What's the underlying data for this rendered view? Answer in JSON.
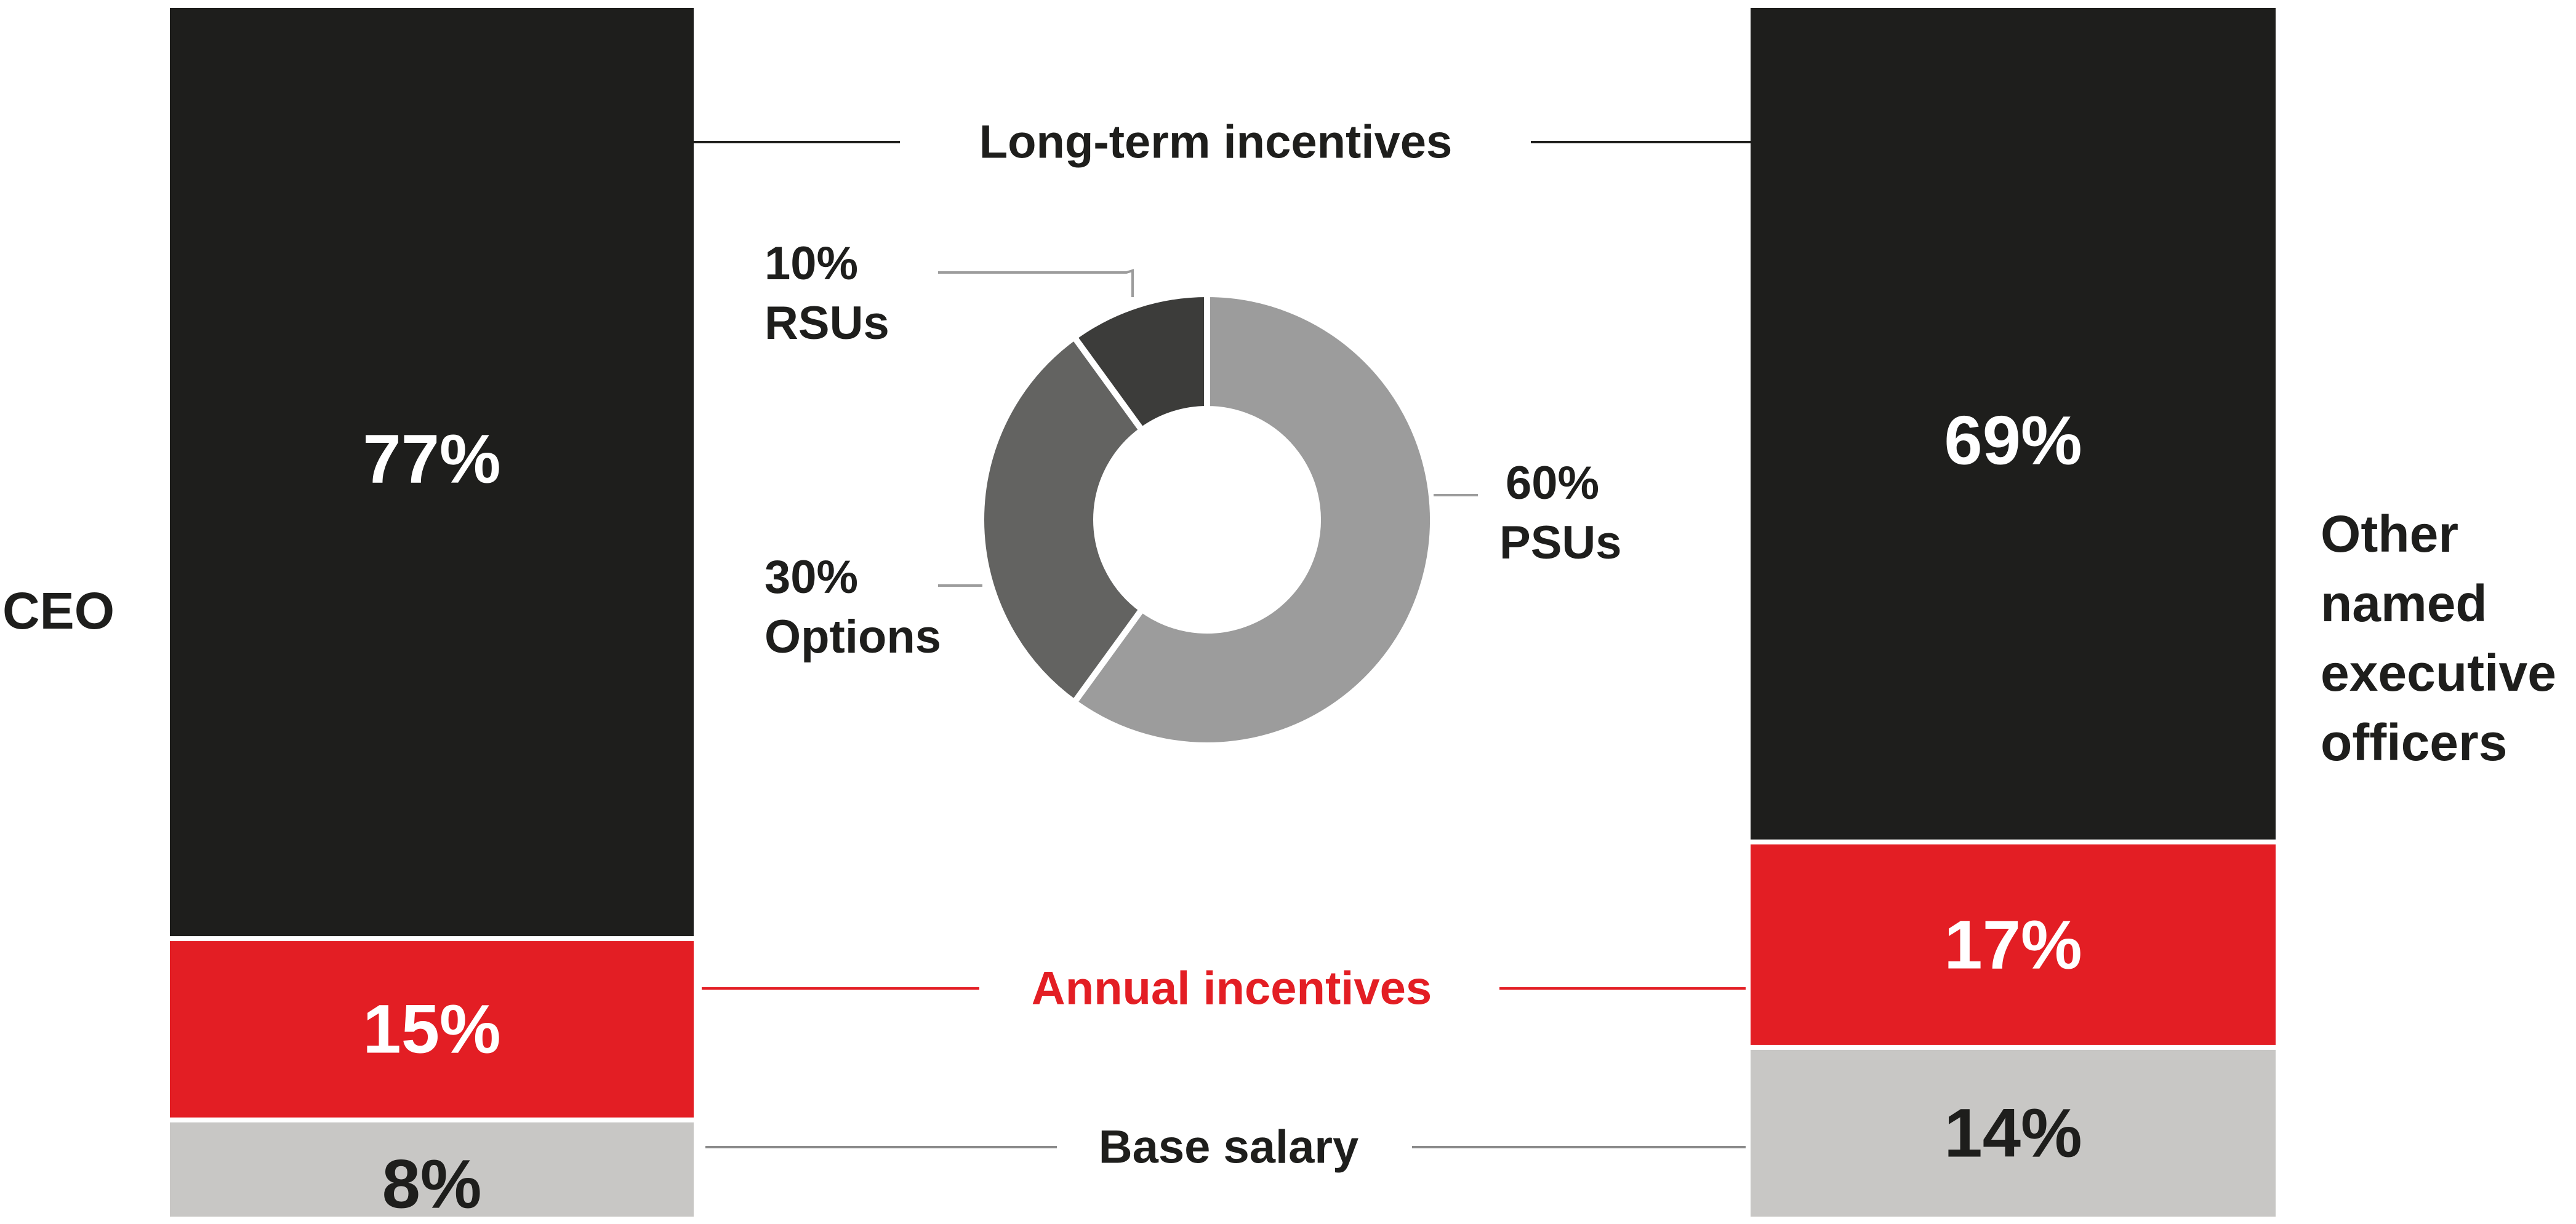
{
  "chart_data": [
    {
      "type": "bar",
      "stacked": true,
      "unit": "%",
      "categories": [
        "CEO",
        "Other named executive officers"
      ],
      "series": [
        {
          "name": "Base salary",
          "values": [
            8,
            14
          ],
          "color": "#c8c7c5"
        },
        {
          "name": "Annual incentives",
          "values": [
            15,
            17
          ],
          "color": "#e31e24"
        },
        {
          "name": "Long-term incentives",
          "values": [
            77,
            69
          ],
          "color": "#1e1e1c"
        }
      ],
      "data_labels": {
        "CEO": [
          "8%",
          "15%",
          "77%"
        ],
        "Other named executive officers": [
          "14%",
          "17%",
          "69%"
        ]
      },
      "legend": "inline labels between bars"
    },
    {
      "type": "pie",
      "donut": true,
      "slices": [
        {
          "label": "PSUs",
          "value": 60,
          "text": "60%",
          "color": "#9c9c9c"
        },
        {
          "label": "Options",
          "value": 30,
          "text": "30%",
          "color": "#636361"
        },
        {
          "label": "RSUs",
          "value": 10,
          "text": "10%",
          "color": "#3c3c3a"
        }
      ]
    }
  ],
  "labels": {
    "ceo": "CEO",
    "others": [
      "Other",
      "named",
      "executive",
      "officers"
    ],
    "lti": "Long-term incentives",
    "annual": "Annual incentives",
    "base": "Base salary"
  },
  "colors": {
    "accent": "#e31e24",
    "leader": "#8a8a8a"
  }
}
